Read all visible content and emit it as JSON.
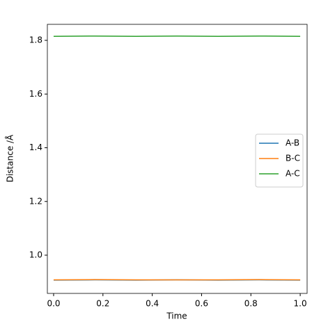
{
  "chart_data": {
    "type": "line",
    "x_label": "Time",
    "y_label": "Distance /Å",
    "x": [
      0,
      0.167,
      0.333,
      0.5,
      0.667,
      0.833,
      1.0
    ],
    "series": [
      {
        "name": "A-B",
        "color": "#1f77b4",
        "values": [
          0.907,
          0.908,
          0.907,
          0.908,
          0.907,
          0.908,
          0.907
        ]
      },
      {
        "name": "B-C",
        "color": "#ff7f0e",
        "values": [
          0.908,
          0.909,
          0.908,
          0.908,
          0.908,
          0.909,
          0.908
        ]
      },
      {
        "name": "A-C",
        "color": "#2ca02c",
        "values": [
          1.815,
          1.816,
          1.815,
          1.816,
          1.815,
          1.816,
          1.815
        ]
      }
    ],
    "xlim": [
      -0.0254,
      1.028
    ],
    "ylim": [
      0.8576,
      1.8596
    ],
    "xticks": [
      {
        "value": 0,
        "label": "0.0"
      },
      0.2,
      0.4,
      0.6,
      0.8,
      {
        "value": 1,
        "label": "1.0"
      }
    ],
    "yticks": [
      {
        "value": 1,
        "label": "1.0"
      },
      1.2,
      1.4,
      1.6,
      1.8
    ],
    "legend": "right"
  }
}
